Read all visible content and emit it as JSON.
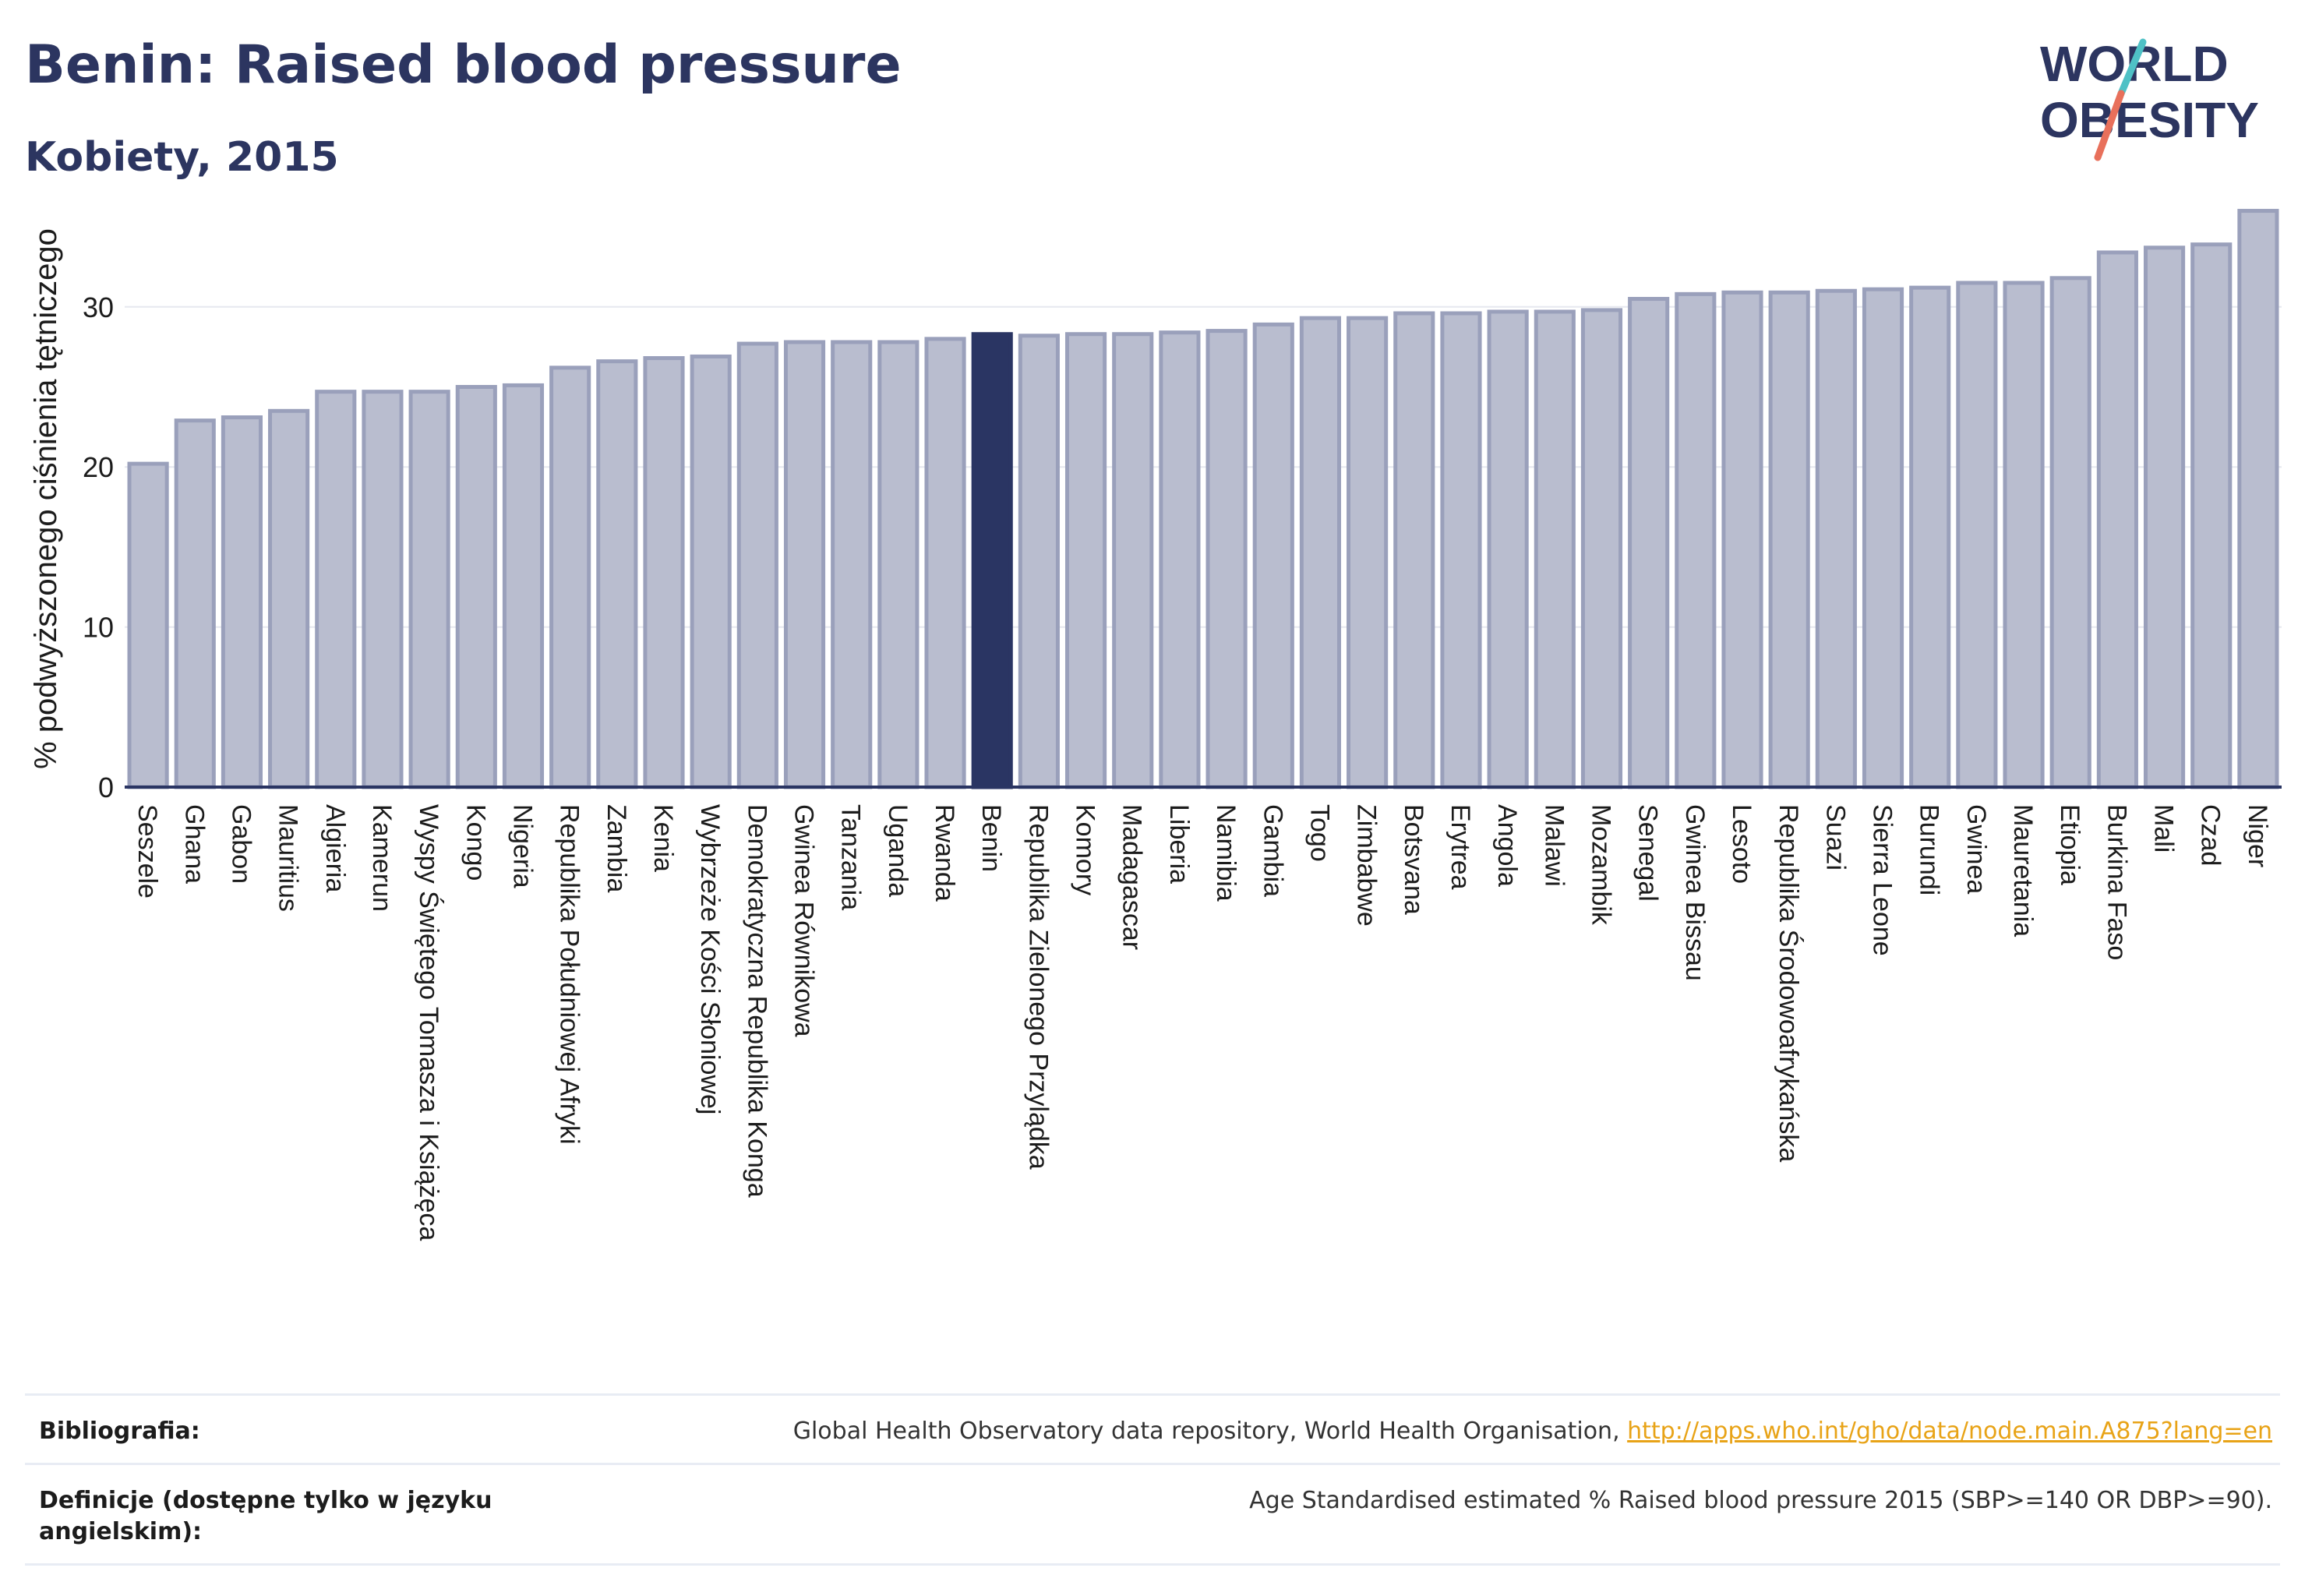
{
  "header": {
    "title": "Benin: Raised blood pressure",
    "subtitle": "Kobiety, 2015"
  },
  "logo": {
    "line1": "WORLD",
    "line2": "OBESITY",
    "colors": {
      "text": "#2c3560",
      "slash_top": "#4fc1c6",
      "slash_bottom": "#e8705b"
    }
  },
  "colors": {
    "bar_fill": "#b9bdcf",
    "bar_stroke": "#9aa0bb",
    "highlight": "#2a3563",
    "grid": "#e6e8ef",
    "axis": "#2a3563"
  },
  "chart_data": {
    "type": "bar",
    "title": "Benin: Raised blood pressure",
    "subtitle": "Kobiety, 2015",
    "xlabel": "",
    "ylabel": "% podwyższonego ciśnienia tętniczego",
    "ylim": [
      0,
      37
    ],
    "yticks": [
      0,
      10,
      20,
      30
    ],
    "grid": true,
    "highlight": "Benin",
    "categories": [
      "Seszele",
      "Ghana",
      "Gabon",
      "Mauritius",
      "Algieria",
      "Kamerun",
      "Wyspy Świętego Tomasza i Książęca",
      "Kongo",
      "Nigeria",
      "Republika Południowej Afryki",
      "Zambia",
      "Kenia",
      "Wybrzeże Kości Słoniowej",
      "Demokratyczna Republika Konga",
      "Gwinea Równikowa",
      "Tanzania",
      "Uganda",
      "Rwanda",
      "Benin",
      "Republika Zielonego Przylądka",
      "Komory",
      "Madagascar",
      "Liberia",
      "Namibia",
      "Gambia",
      "Togo",
      "Zimbabwe",
      "Botsvana",
      "Erytrea",
      "Angola",
      "Malawi",
      "Mozambik",
      "Senegal",
      "Gwinea Bissau",
      "Lesoto",
      "Republika Środowoafrykańska",
      "Suazi",
      "Sierra Leone",
      "Burundi",
      "Gwinea",
      "Mauretania",
      "Etiopia",
      "Burkina Faso",
      "Mali",
      "Czad",
      "Niger"
    ],
    "values": [
      20.2,
      22.9,
      23.1,
      23.5,
      24.7,
      24.7,
      24.7,
      25.0,
      25.1,
      26.2,
      26.6,
      26.8,
      26.9,
      27.7,
      27.8,
      27.8,
      27.8,
      28.0,
      28.3,
      28.2,
      28.3,
      28.3,
      28.4,
      28.5,
      28.9,
      29.3,
      29.3,
      29.6,
      29.6,
      29.7,
      29.7,
      29.8,
      30.5,
      30.8,
      30.9,
      30.9,
      31.0,
      31.1,
      31.2,
      31.5,
      31.5,
      31.8,
      33.4,
      33.7,
      33.9,
      36.0
    ]
  },
  "footer": {
    "bibliography_label": "Bibliografia:",
    "bibliography_text": "Global Health Observatory data repository, World Health Organisation, ",
    "bibliography_link": "http://apps.who.int/gho/data/node.main.A875?lang=en",
    "definitions_label": "Definicje (dostępne tylko w języku angielskim):",
    "definitions_text": "Age Standardised estimated % Raised blood pressure 2015 (SBP>=140 OR DBP>=90)."
  }
}
